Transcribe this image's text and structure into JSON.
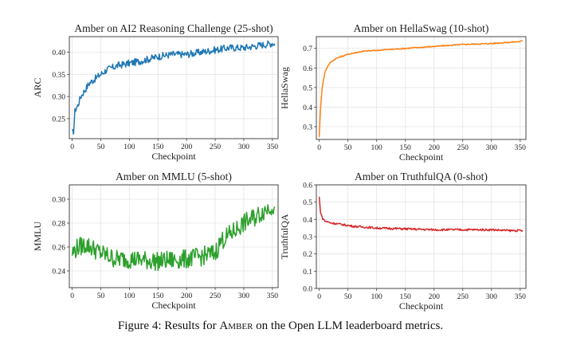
{
  "chart_data": [
    {
      "type": "line",
      "title": "Amber on AI2 Reasoning Challenge (25-shot)",
      "xlabel": "Checkpoint",
      "ylabel": "ARC",
      "xlim": [
        -5,
        360
      ],
      "ylim": [
        0.205,
        0.435
      ],
      "xticks": [
        0,
        50,
        100,
        150,
        200,
        250,
        300,
        350
      ],
      "yticks": [
        0.25,
        0.3,
        0.35,
        0.4
      ],
      "ytick_labels": [
        "0.25",
        "0.30",
        "0.35",
        "0.40"
      ],
      "color": "#1f77b4",
      "grid": true,
      "series": [
        {
          "x": [
            0,
            2,
            5,
            10,
            15,
            20,
            30,
            40,
            50,
            60,
            70,
            80,
            100,
            120,
            150,
            175,
            200,
            225,
            250,
            275,
            300,
            325,
            350,
            355
          ],
          "values": [
            0.22,
            0.215,
            0.27,
            0.28,
            0.3,
            0.31,
            0.33,
            0.34,
            0.35,
            0.36,
            0.365,
            0.37,
            0.375,
            0.38,
            0.39,
            0.395,
            0.395,
            0.4,
            0.405,
            0.41,
            0.41,
            0.415,
            0.42,
            0.42
          ],
          "noise": 0.008
        }
      ]
    },
    {
      "type": "line",
      "title": "Amber on HellaSwag (10-shot)",
      "xlabel": "Checkpoint",
      "ylabel": "HellaSwag",
      "xlim": [
        -5,
        360
      ],
      "ylim": [
        0.235,
        0.76
      ],
      "xticks": [
        0,
        50,
        100,
        150,
        200,
        250,
        300,
        350
      ],
      "yticks": [
        0.3,
        0.4,
        0.5,
        0.6,
        0.7
      ],
      "ytick_labels": [
        "0.3",
        "0.4",
        "0.5",
        "0.6",
        "0.7"
      ],
      "color": "#ff7f0e",
      "grid": true,
      "series": [
        {
          "x": [
            0,
            2,
            5,
            10,
            15,
            20,
            30,
            40,
            50,
            75,
            100,
            150,
            200,
            250,
            300,
            350,
            355
          ],
          "values": [
            0.25,
            0.38,
            0.5,
            0.58,
            0.61,
            0.63,
            0.65,
            0.66,
            0.67,
            0.685,
            0.69,
            0.7,
            0.71,
            0.72,
            0.725,
            0.735,
            0.74
          ],
          "noise": 0.003
        }
      ]
    },
    {
      "type": "line",
      "title": "Amber on MMLU (5-shot)",
      "xlabel": "Checkpoint",
      "ylabel": "MMLU",
      "xlim": [
        -5,
        360
      ],
      "ylim": [
        0.226,
        0.312
      ],
      "xticks": [
        0,
        50,
        100,
        150,
        200,
        250,
        300,
        350
      ],
      "yticks": [
        0.24,
        0.26,
        0.28,
        0.3
      ],
      "ytick_labels": [
        "0.24",
        "0.26",
        "0.28",
        "0.30"
      ],
      "color": "#2ca02c",
      "grid": true,
      "series": [
        {
          "x": [
            0,
            10,
            25,
            50,
            75,
            100,
            150,
            200,
            225,
            250,
            260,
            280,
            300,
            320,
            340,
            350,
            355
          ],
          "values": [
            0.255,
            0.26,
            0.262,
            0.255,
            0.25,
            0.25,
            0.248,
            0.25,
            0.252,
            0.255,
            0.265,
            0.272,
            0.28,
            0.285,
            0.292,
            0.295,
            0.29
          ],
          "noise": 0.008
        }
      ]
    },
    {
      "type": "line",
      "title": "Amber on TruthfulQA (0-shot)",
      "xlabel": "Checkpoint",
      "ylabel": "TruthfulQA",
      "xlim": [
        -5,
        360
      ],
      "ylim": [
        0.0,
        0.6
      ],
      "xticks": [
        0,
        50,
        100,
        150,
        200,
        250,
        300,
        350
      ],
      "yticks": [
        0.0,
        0.1,
        0.2,
        0.3,
        0.4,
        0.5,
        0.6
      ],
      "ytick_labels": [
        "0.0",
        "0.1",
        "0.2",
        "0.3",
        "0.4",
        "0.5",
        "0.6"
      ],
      "color": "#d62728",
      "grid": true,
      "series": [
        {
          "x": [
            0,
            2,
            5,
            10,
            20,
            40,
            60,
            80,
            100,
            150,
            200,
            250,
            300,
            330,
            355
          ],
          "values": [
            0.53,
            0.45,
            0.41,
            0.39,
            0.38,
            0.37,
            0.36,
            0.355,
            0.35,
            0.345,
            0.34,
            0.34,
            0.34,
            0.335,
            0.335
          ],
          "noise": 0.006
        }
      ]
    }
  ],
  "caption": {
    "prefix": "Figure 4: Results for ",
    "name": "Amber",
    "suffix": " on the Open LLM leaderboard metrics."
  }
}
